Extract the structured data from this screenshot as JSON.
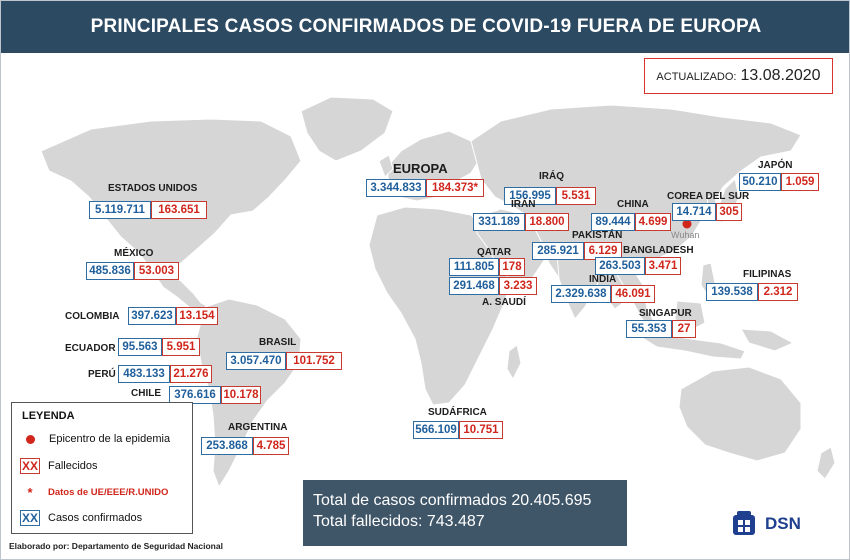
{
  "title": "PRINCIPALES CASOS CONFIRMADOS DE COVID-19 FUERA DE EUROPA",
  "updated": {
    "label": "ACTUALIZADO:",
    "date": "13.08.2020"
  },
  "epicenter_label": "Wuhan",
  "countries": {
    "europa": {
      "name": "EUROPA",
      "cases": "3.344.833",
      "deaths": "184.373*"
    },
    "usa": {
      "name": "ESTADOS UNIDOS",
      "cases": "5.119.711",
      "deaths": "163.651"
    },
    "mexico": {
      "name": "MÉXICO",
      "cases": "485.836",
      "deaths": "53.003"
    },
    "colombia": {
      "name": "COLOMBIA",
      "cases": "397.623",
      "deaths": "13.154"
    },
    "ecuador": {
      "name": "ECUADOR",
      "cases": "95.563",
      "deaths": "5.951"
    },
    "peru": {
      "name": "PERÚ",
      "cases": "483.133",
      "deaths": "21.276"
    },
    "chile": {
      "name": "CHILE",
      "cases": "376.616",
      "deaths": "10.178"
    },
    "brasil": {
      "name": "BRASIL",
      "cases": "3.057.470",
      "deaths": "101.752"
    },
    "argentina": {
      "name": "ARGENTINA",
      "cases": "253.868",
      "deaths": "4.785"
    },
    "iraq": {
      "name": "IRÁQ",
      "cases": "156.995",
      "deaths": "5.531"
    },
    "iran": {
      "name": "IRÁN",
      "cases": "331.189",
      "deaths": "18.800"
    },
    "china": {
      "name": "CHINA",
      "cases": "89.444",
      "deaths": "4.699"
    },
    "corea": {
      "name": "COREA DEL SUR",
      "cases": "14.714",
      "deaths": "305"
    },
    "japon": {
      "name": "JAPÓN",
      "cases": "50.210",
      "deaths": "1.059"
    },
    "qatar": {
      "name": "QATAR",
      "cases": "111.805",
      "deaths": "178"
    },
    "pakistan": {
      "name": "PAKISTÁN",
      "cases": "285.921",
      "deaths": "6.129"
    },
    "bangladesh": {
      "name": "BANGLADESH",
      "cases": "263.503",
      "deaths": "3.471"
    },
    "saudi": {
      "name": "A. SAUDÍ",
      "cases": "291.468",
      "deaths": "3.233"
    },
    "india": {
      "name": "INDIA",
      "cases": "2.329.638",
      "deaths": "46.091"
    },
    "filipinas": {
      "name": "FILIPINAS",
      "cases": "139.538",
      "deaths": "2.312"
    },
    "singapur": {
      "name": "SINGAPUR",
      "cases": "55.353",
      "deaths": "27"
    },
    "sudafrica": {
      "name": "SUDÁFRICA",
      "cases": "566.109",
      "deaths": "10.751"
    }
  },
  "legend": {
    "title": "LEYENDA",
    "epicenter": "Epicentro de la epidemia",
    "deaths_symbol": "XX",
    "deaths": "Fallecidos",
    "eu_symbol": "*",
    "eu_data": "Datos de UE/EEE/R.UNIDO",
    "cases_symbol": "XX",
    "cases": "Casos confirmados"
  },
  "totals": {
    "cases": "Total de casos confirmados 20.405.695",
    "deaths": "Total fallecidos: 743.487"
  },
  "footer": "Elaborado por: Departamento de Seguridad Nacional",
  "logo_text": "DSN",
  "colors": {
    "header": "#2d4a63",
    "cases": "#1f5f9c",
    "deaths": "#d0261c",
    "land": "#d9d9d9"
  }
}
